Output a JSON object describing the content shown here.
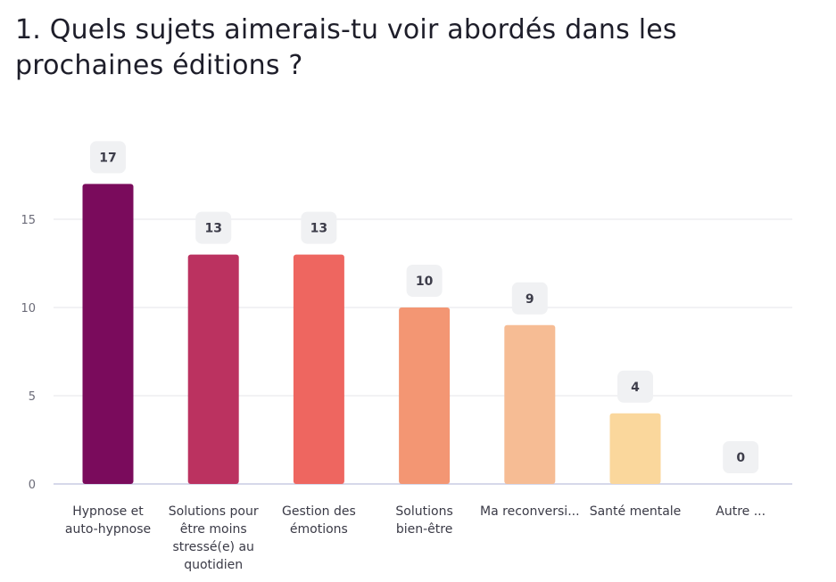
{
  "header": {
    "title": "1. Quels sujets aimerais-tu voir abordés dans les prochaines éditions ?"
  },
  "chart_data": {
    "type": "bar",
    "title": "1. Quels sujets aimerais-tu voir abordés dans les prochaines éditions ?",
    "xlabel": "",
    "ylabel": "",
    "ylim": [
      0,
      18
    ],
    "yticks": [
      0,
      5,
      10,
      15
    ],
    "grid": true,
    "legend": "none",
    "categories": [
      [
        "Hypnose et",
        "auto-hypnose"
      ],
      [
        "Solutions pour",
        "être moins",
        "stressé(e) au",
        "quotidien"
      ],
      [
        "Gestion des",
        "émotions"
      ],
      [
        "Solutions",
        "bien-être"
      ],
      [
        "Ma reconversi..."
      ],
      [
        "Santé mentale"
      ],
      [
        "Autre ..."
      ]
    ],
    "values": [
      17,
      13,
      13,
      10,
      9,
      4,
      0
    ],
    "colors": [
      "#7a0b5c",
      "#bb3260",
      "#ee6660",
      "#f39673",
      "#f6bc94",
      "#fad79c",
      "#fae6b8"
    ],
    "label_bg": "#f0f1f3",
    "grid_color": "#e4e4ea",
    "axis_color": "#c9cbe3"
  }
}
